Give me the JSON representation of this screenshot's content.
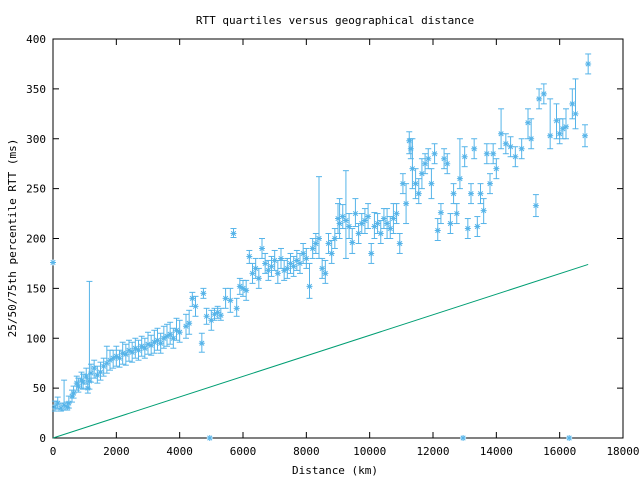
{
  "chart_data": {
    "type": "scatter",
    "title": "RTT quartiles versus geographical distance",
    "xlabel": "Distance (km)",
    "ylabel": "25/50/75th percentile RTT (ms)",
    "xlim": [
      0,
      18000
    ],
    "ylim": [
      0,
      400
    ],
    "xticks": [
      0,
      2000,
      4000,
      6000,
      8000,
      10000,
      12000,
      14000,
      16000,
      18000
    ],
    "yticks": [
      0,
      50,
      100,
      150,
      200,
      250,
      300,
      350,
      400
    ],
    "grid": false,
    "legend": "none",
    "colors": {
      "points": "#56b4e9",
      "line": "#009e73",
      "axes": "#000000"
    },
    "series": [
      {
        "kind": "points-with-errorbars",
        "points": [
          [
            0,
            176,
            176,
            176
          ],
          [
            60,
            31,
            27,
            37
          ],
          [
            150,
            35,
            29,
            41
          ],
          [
            250,
            30,
            27,
            35
          ],
          [
            350,
            33,
            28,
            58
          ],
          [
            450,
            31,
            28,
            36
          ],
          [
            500,
            35,
            30,
            42
          ],
          [
            600,
            42,
            36,
            48
          ],
          [
            650,
            45,
            40,
            52
          ],
          [
            750,
            55,
            48,
            62
          ],
          [
            800,
            52,
            46,
            60
          ],
          [
            900,
            58,
            50,
            66
          ],
          [
            950,
            56,
            49,
            64
          ],
          [
            1050,
            62,
            54,
            70
          ],
          [
            1100,
            50,
            45,
            60
          ],
          [
            1150,
            57,
            49,
            157
          ],
          [
            1200,
            65,
            56,
            74
          ],
          [
            1300,
            70,
            60,
            78
          ],
          [
            1400,
            63,
            55,
            72
          ],
          [
            1500,
            66,
            58,
            76
          ],
          [
            1600,
            72,
            62,
            80
          ],
          [
            1700,
            75,
            65,
            92
          ],
          [
            1800,
            78,
            68,
            88
          ],
          [
            1900,
            80,
            70,
            88
          ],
          [
            2000,
            82,
            72,
            92
          ],
          [
            2100,
            80,
            71,
            88
          ],
          [
            2200,
            85,
            74,
            96
          ],
          [
            2300,
            84,
            73,
            94
          ],
          [
            2400,
            88,
            77,
            98
          ],
          [
            2500,
            86,
            76,
            96
          ],
          [
            2600,
            90,
            80,
            100
          ],
          [
            2700,
            88,
            78,
            98
          ],
          [
            2800,
            92,
            82,
            102
          ],
          [
            2900,
            90,
            80,
            100
          ],
          [
            3000,
            94,
            84,
            106
          ],
          [
            3100,
            93,
            83,
            103
          ],
          [
            3200,
            96,
            85,
            108
          ],
          [
            3300,
            98,
            88,
            110
          ],
          [
            3400,
            95,
            85,
            105
          ],
          [
            3500,
            100,
            90,
            112
          ],
          [
            3600,
            102,
            92,
            114
          ],
          [
            3700,
            104,
            94,
            116
          ],
          [
            3800,
            100,
            90,
            110
          ],
          [
            3900,
            108,
            98,
            120
          ],
          [
            4000,
            106,
            96,
            118
          ],
          [
            4200,
            112,
            100,
            124
          ],
          [
            4300,
            115,
            104,
            128
          ],
          [
            4400,
            140,
            132,
            146
          ],
          [
            4500,
            132,
            122,
            142
          ],
          [
            4700,
            95,
            86,
            105
          ],
          [
            4750,
            145,
            140,
            150
          ],
          [
            4850,
            122,
            114,
            130
          ],
          [
            4950,
            0,
            0,
            0
          ],
          [
            5000,
            118,
            108,
            128
          ],
          [
            5100,
            124,
            118,
            130
          ],
          [
            5200,
            126,
            120,
            132
          ],
          [
            5300,
            123,
            118,
            130
          ],
          [
            5450,
            140,
            130,
            150
          ],
          [
            5600,
            138,
            126,
            150
          ],
          [
            5700,
            205,
            201,
            210
          ],
          [
            5800,
            130,
            122,
            140
          ],
          [
            5900,
            152,
            144,
            160
          ],
          [
            6000,
            150,
            142,
            158
          ],
          [
            6100,
            148,
            138,
            158
          ],
          [
            6200,
            182,
            175,
            188
          ],
          [
            6300,
            165,
            155,
            175
          ],
          [
            6400,
            170,
            160,
            180
          ],
          [
            6500,
            160,
            150,
            170
          ],
          [
            6600,
            190,
            180,
            200
          ],
          [
            6700,
            175,
            165,
            185
          ],
          [
            6800,
            168,
            158,
            178
          ],
          [
            6900,
            172,
            162,
            182
          ],
          [
            7000,
            178,
            168,
            188
          ],
          [
            7100,
            165,
            155,
            178
          ],
          [
            7200,
            180,
            170,
            190
          ],
          [
            7300,
            168,
            158,
            178
          ],
          [
            7400,
            170,
            160,
            180
          ],
          [
            7500,
            175,
            165,
            185
          ],
          [
            7600,
            172,
            162,
            182
          ],
          [
            7700,
            178,
            168,
            188
          ],
          [
            7800,
            175,
            165,
            185
          ],
          [
            7900,
            185,
            175,
            195
          ],
          [
            8000,
            180,
            170,
            190
          ],
          [
            8100,
            152,
            140,
            175
          ],
          [
            8200,
            190,
            180,
            200
          ],
          [
            8300,
            195,
            185,
            205
          ],
          [
            8400,
            200,
            180,
            262
          ],
          [
            8500,
            170,
            160,
            180
          ],
          [
            8600,
            165,
            155,
            178
          ],
          [
            8700,
            195,
            185,
            205
          ],
          [
            8800,
            185,
            175,
            198
          ],
          [
            8900,
            200,
            190,
            210
          ],
          [
            9000,
            220,
            205,
            235
          ],
          [
            9050,
            215,
            200,
            240
          ],
          [
            9150,
            222,
            210,
            234
          ],
          [
            9250,
            218,
            180,
            268
          ],
          [
            9350,
            212,
            200,
            225
          ],
          [
            9450,
            196,
            185,
            210
          ],
          [
            9550,
            225,
            212,
            240
          ],
          [
            9650,
            205,
            195,
            215
          ],
          [
            9750,
            215,
            205,
            225
          ],
          [
            9850,
            218,
            205,
            230
          ],
          [
            9950,
            222,
            210,
            235
          ],
          [
            10050,
            185,
            175,
            195
          ],
          [
            10150,
            212,
            200,
            226
          ],
          [
            10250,
            215,
            205,
            225
          ],
          [
            10350,
            205,
            195,
            218
          ],
          [
            10450,
            220,
            210,
            230
          ],
          [
            10550,
            215,
            200,
            230
          ],
          [
            10650,
            210,
            200,
            222
          ],
          [
            10750,
            220,
            205,
            235
          ],
          [
            10850,
            225,
            215,
            235
          ],
          [
            10950,
            195,
            185,
            205
          ],
          [
            11050,
            255,
            245,
            265
          ],
          [
            11150,
            235,
            215,
            255
          ],
          [
            11250,
            298,
            285,
            307
          ],
          [
            11300,
            290,
            280,
            300
          ],
          [
            11350,
            270,
            250,
            300
          ],
          [
            11450,
            255,
            240,
            270
          ],
          [
            11550,
            245,
            235,
            260
          ],
          [
            11650,
            265,
            250,
            280
          ],
          [
            11750,
            275,
            265,
            285
          ],
          [
            11850,
            280,
            270,
            290
          ],
          [
            11950,
            255,
            240,
            270
          ],
          [
            12050,
            285,
            275,
            295
          ],
          [
            12150,
            208,
            198,
            220
          ],
          [
            12250,
            226,
            215,
            235
          ],
          [
            12350,
            280,
            270,
            290
          ],
          [
            12450,
            275,
            265,
            285
          ],
          [
            12550,
            215,
            205,
            225
          ],
          [
            12650,
            245,
            235,
            255
          ],
          [
            12750,
            225,
            215,
            235
          ],
          [
            12850,
            260,
            250,
            300
          ],
          [
            12950,
            0,
            0,
            0
          ],
          [
            13000,
            282,
            272,
            292
          ],
          [
            13100,
            210,
            200,
            220
          ],
          [
            13200,
            245,
            235,
            255
          ],
          [
            13300,
            290,
            280,
            300
          ],
          [
            13400,
            212,
            202,
            222
          ],
          [
            13500,
            245,
            235,
            255
          ],
          [
            13600,
            228,
            215,
            240
          ],
          [
            13700,
            285,
            275,
            295
          ],
          [
            13800,
            255,
            245,
            265
          ],
          [
            13900,
            285,
            275,
            295
          ],
          [
            14000,
            270,
            260,
            280
          ],
          [
            14150,
            305,
            290,
            330
          ],
          [
            14300,
            295,
            285,
            305
          ],
          [
            14450,
            292,
            282,
            302
          ],
          [
            14600,
            282,
            272,
            292
          ],
          [
            14800,
            290,
            280,
            300
          ],
          [
            15000,
            316,
            300,
            330
          ],
          [
            15100,
            300,
            290,
            320
          ],
          [
            15250,
            233,
            222,
            244
          ],
          [
            15350,
            340,
            330,
            350
          ],
          [
            15500,
            345,
            335,
            355
          ],
          [
            15700,
            303,
            290,
            340
          ],
          [
            15900,
            318,
            300,
            335
          ],
          [
            16000,
            305,
            295,
            320
          ],
          [
            16100,
            310,
            300,
            320
          ],
          [
            16200,
            312,
            300,
            330
          ],
          [
            16300,
            0,
            0,
            0
          ],
          [
            16400,
            335,
            320,
            350
          ],
          [
            16500,
            325,
            310,
            360
          ],
          [
            16800,
            303,
            292,
            314
          ],
          [
            16900,
            375,
            365,
            385
          ]
        ]
      },
      {
        "kind": "line",
        "x": [
          0,
          16900
        ],
        "y": [
          0,
          174
        ]
      }
    ]
  }
}
